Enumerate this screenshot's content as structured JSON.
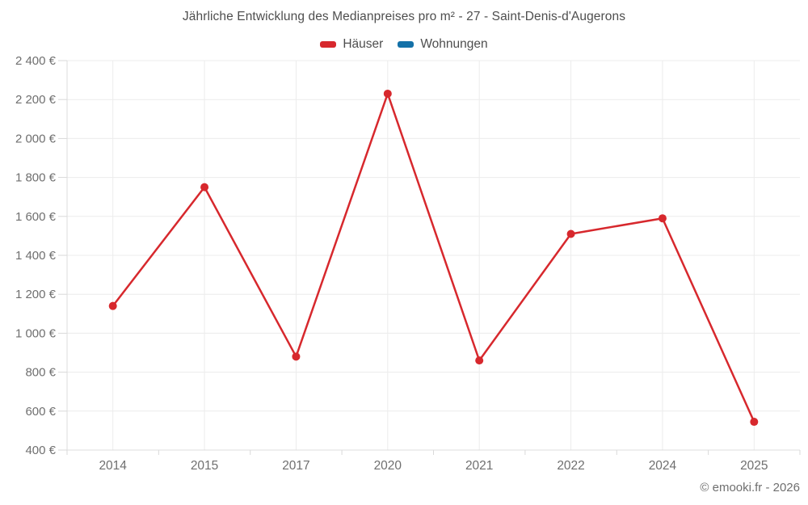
{
  "chart_data": {
    "type": "line",
    "title": "Jährliche Entwicklung des Medianpreises pro m² - 27 - Saint-Denis-d'Augerons",
    "categories": [
      "2014",
      "2015",
      "2017",
      "2020",
      "2021",
      "2022",
      "2024",
      "2025"
    ],
    "series": [
      {
        "name": "Häuser",
        "color": "#d7282d",
        "values": [
          1140,
          1750,
          880,
          2230,
          860,
          1510,
          1590,
          545
        ]
      },
      {
        "name": "Wohnungen",
        "color": "#1471a8",
        "values": []
      }
    ],
    "ylim": [
      400,
      2400
    ],
    "y_tick_step": 200,
    "y_unit_suffix": " €",
    "grid": true,
    "legend_position": "top",
    "colors": {
      "grid_line": "#ececec",
      "axis_line": "#dcdcdc",
      "tick_mark": "#d9d9d9",
      "tick_label": "#6f6f6f"
    }
  },
  "footer": {
    "credit": "© emooki.fr - 2026"
  }
}
